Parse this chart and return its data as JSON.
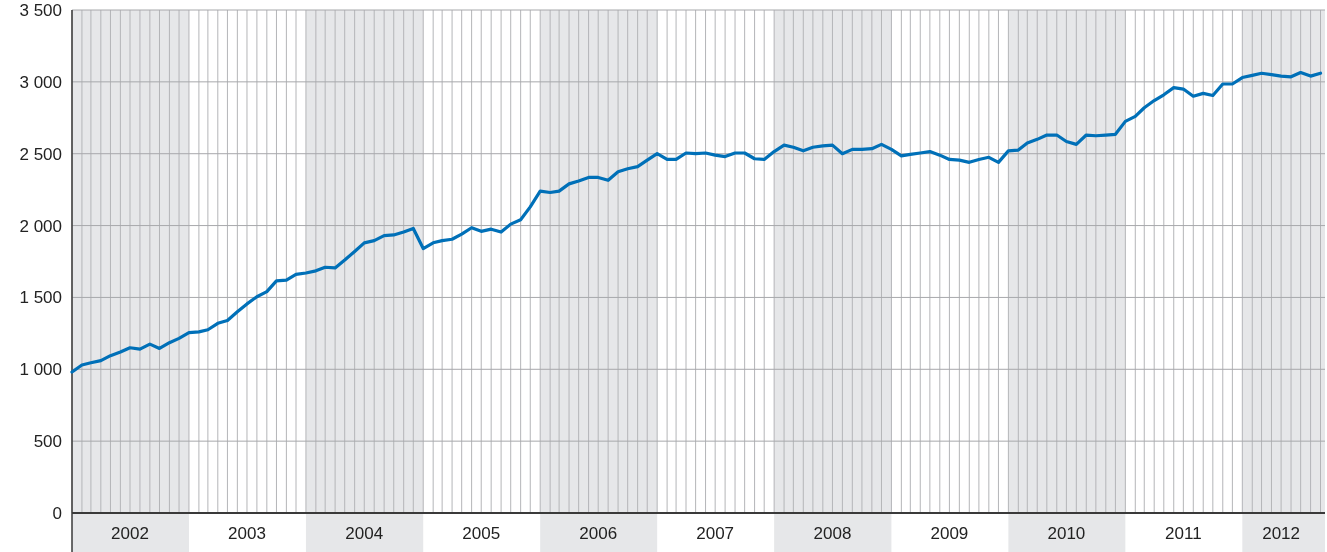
{
  "chart_data": {
    "type": "line",
    "x": [
      "2002-01",
      "2002-02",
      "2002-03",
      "2002-04",
      "2002-05",
      "2002-06",
      "2002-07",
      "2002-08",
      "2002-09",
      "2002-10",
      "2002-11",
      "2002-12",
      "2003-01",
      "2003-02",
      "2003-03",
      "2003-04",
      "2003-05",
      "2003-06",
      "2003-07",
      "2003-08",
      "2003-09",
      "2003-10",
      "2003-11",
      "2003-12",
      "2004-01",
      "2004-02",
      "2004-03",
      "2004-04",
      "2004-05",
      "2004-06",
      "2004-07",
      "2004-08",
      "2004-09",
      "2004-10",
      "2004-11",
      "2004-12",
      "2005-01",
      "2005-02",
      "2005-03",
      "2005-04",
      "2005-05",
      "2005-06",
      "2005-07",
      "2005-08",
      "2005-09",
      "2005-10",
      "2005-11",
      "2005-12",
      "2006-01",
      "2006-02",
      "2006-03",
      "2006-04",
      "2006-05",
      "2006-06",
      "2006-07",
      "2006-08",
      "2006-09",
      "2006-10",
      "2006-11",
      "2006-12",
      "2007-01",
      "2007-02",
      "2007-03",
      "2007-04",
      "2007-05",
      "2007-06",
      "2007-07",
      "2007-08",
      "2007-09",
      "2007-10",
      "2007-11",
      "2007-12",
      "2008-01",
      "2008-02",
      "2008-03",
      "2008-04",
      "2008-05",
      "2008-06",
      "2008-07",
      "2008-08",
      "2008-09",
      "2008-10",
      "2008-11",
      "2008-12",
      "2009-01",
      "2009-02",
      "2009-03",
      "2009-04",
      "2009-05",
      "2009-06",
      "2009-07",
      "2009-08",
      "2009-09",
      "2009-10",
      "2009-11",
      "2009-12",
      "2010-01",
      "2010-02",
      "2010-03",
      "2010-04",
      "2010-05",
      "2010-06",
      "2010-07",
      "2010-08",
      "2010-09",
      "2010-10",
      "2010-11",
      "2010-12",
      "2011-01",
      "2011-02",
      "2011-03",
      "2011-04",
      "2011-05",
      "2011-06",
      "2011-07",
      "2011-08",
      "2011-09",
      "2011-10",
      "2011-11",
      "2011-12",
      "2012-01",
      "2012-02",
      "2012-03",
      "2012-04",
      "2012-05",
      "2012-06",
      "2012-07",
      "2012-08",
      "2012-09"
    ],
    "series": [
      {
        "color": "#0070b8",
        "values": [
          981,
          1030,
          1045,
          1060,
          1095,
          1120,
          1150,
          1140,
          1175,
          1145,
          1185,
          1215,
          1255,
          1260,
          1275,
          1320,
          1340,
          1400,
          1455,
          1505,
          1540,
          1615,
          1620,
          1660,
          1670,
          1685,
          1710,
          1705,
          1760,
          1820,
          1880,
          1895,
          1930,
          1935,
          1955,
          1980,
          1840,
          1880,
          1895,
          1905,
          1940,
          1985,
          1960,
          1975,
          1955,
          2010,
          2040,
          2130,
          2240,
          2230,
          2240,
          2290,
          2310,
          2335,
          2335,
          2315,
          2375,
          2395,
          2410,
          2455,
          2500,
          2460,
          2460,
          2505,
          2500,
          2505,
          2490,
          2480,
          2505,
          2505,
          2465,
          2460,
          2515,
          2560,
          2545,
          2520,
          2545,
          2555,
          2560,
          2500,
          2530,
          2530,
          2535,
          2565,
          2530,
          2485,
          2495,
          2505,
          2515,
          2490,
          2460,
          2455,
          2440,
          2460,
          2475,
          2440,
          2520,
          2525,
          2575,
          2600,
          2630,
          2630,
          2585,
          2565,
          2630,
          2625,
          2630,
          2635,
          2725,
          2760,
          2820,
          2870,
          2910,
          2960,
          2950,
          2900,
          2920,
          2905,
          2985,
          2985,
          3030,
          3045,
          3060,
          3050,
          3040,
          3035,
          3065,
          3040,
          3060
        ]
      }
    ],
    "xlim": [
      "2002-01",
      "2012-09-15"
    ],
    "xticks": [
      {
        "value": "2002-01",
        "label": null
      },
      {
        "value": "2002-02",
        "label": null
      },
      {
        "value": "2002-03",
        "label": null
      },
      {
        "value": "2002-04",
        "label": null
      },
      {
        "value": "2002-05",
        "label": null
      },
      {
        "value": "2002-06",
        "label": null
      },
      {
        "value": "2002-07",
        "label": "2002"
      },
      {
        "value": "2002-08",
        "label": null
      },
      {
        "value": "2002-09",
        "label": null
      },
      {
        "value": "2002-10",
        "label": null
      },
      {
        "value": "2002-11",
        "label": null
      },
      {
        "value": "2002-12",
        "label": null
      },
      {
        "value": "2003-01",
        "label": null
      },
      {
        "value": "2003-02",
        "label": null
      },
      {
        "value": "2003-03",
        "label": null
      },
      {
        "value": "2003-04",
        "label": null
      },
      {
        "value": "2003-05",
        "label": null
      },
      {
        "value": "2003-06",
        "label": null
      },
      {
        "value": "2003-07",
        "label": "2003"
      },
      {
        "value": "2003-08",
        "label": null
      },
      {
        "value": "2003-09",
        "label": null
      },
      {
        "value": "2003-10",
        "label": null
      },
      {
        "value": "2003-11",
        "label": null
      },
      {
        "value": "2003-12",
        "label": null
      },
      {
        "value": "2004-01",
        "label": null
      },
      {
        "value": "2004-02",
        "label": null
      },
      {
        "value": "2004-03",
        "label": null
      },
      {
        "value": "2004-04",
        "label": null
      },
      {
        "value": "2004-05",
        "label": null
      },
      {
        "value": "2004-06",
        "label": null
      },
      {
        "value": "2004-07",
        "label": "2004"
      },
      {
        "value": "2004-08",
        "label": null
      },
      {
        "value": "2004-09",
        "label": null
      },
      {
        "value": "2004-10",
        "label": null
      },
      {
        "value": "2004-11",
        "label": null
      },
      {
        "value": "2004-12",
        "label": null
      },
      {
        "value": "2005-01",
        "label": null
      },
      {
        "value": "2005-02",
        "label": null
      },
      {
        "value": "2005-03",
        "label": null
      },
      {
        "value": "2005-04",
        "label": null
      },
      {
        "value": "2005-05",
        "label": null
      },
      {
        "value": "2005-06",
        "label": null
      },
      {
        "value": "2005-07",
        "label": "2005"
      },
      {
        "value": "2005-08",
        "label": null
      },
      {
        "value": "2005-09",
        "label": null
      },
      {
        "value": "2005-10",
        "label": null
      },
      {
        "value": "2005-11",
        "label": null
      },
      {
        "value": "2005-12",
        "label": null
      },
      {
        "value": "2006-01",
        "label": null
      },
      {
        "value": "2006-02",
        "label": null
      },
      {
        "value": "2006-03",
        "label": null
      },
      {
        "value": "2006-04",
        "label": null
      },
      {
        "value": "2006-05",
        "label": null
      },
      {
        "value": "2006-06",
        "label": null
      },
      {
        "value": "2006-07",
        "label": "2006"
      },
      {
        "value": "2006-08",
        "label": null
      },
      {
        "value": "2006-09",
        "label": null
      },
      {
        "value": "2006-10",
        "label": null
      },
      {
        "value": "2006-11",
        "label": null
      },
      {
        "value": "2006-12",
        "label": null
      },
      {
        "value": "2007-01",
        "label": null
      },
      {
        "value": "2007-02",
        "label": null
      },
      {
        "value": "2007-03",
        "label": null
      },
      {
        "value": "2007-04",
        "label": null
      },
      {
        "value": "2007-05",
        "label": null
      },
      {
        "value": "2007-06",
        "label": null
      },
      {
        "value": "2007-07",
        "label": "2007"
      },
      {
        "value": "2007-08",
        "label": null
      },
      {
        "value": "2007-09",
        "label": null
      },
      {
        "value": "2007-10",
        "label": null
      },
      {
        "value": "2007-11",
        "label": null
      },
      {
        "value": "2007-12",
        "label": null
      },
      {
        "value": "2008-01",
        "label": null
      },
      {
        "value": "2008-02",
        "label": null
      },
      {
        "value": "2008-03",
        "label": null
      },
      {
        "value": "2008-04",
        "label": null
      },
      {
        "value": "2008-05",
        "label": null
      },
      {
        "value": "2008-06",
        "label": null
      },
      {
        "value": "2008-07",
        "label": "2008"
      },
      {
        "value": "2008-08",
        "label": null
      },
      {
        "value": "2008-09",
        "label": null
      },
      {
        "value": "2008-10",
        "label": null
      },
      {
        "value": "2008-11",
        "label": null
      },
      {
        "value": "2008-12",
        "label": null
      },
      {
        "value": "2009-01",
        "label": null
      },
      {
        "value": "2009-02",
        "label": null
      },
      {
        "value": "2009-03",
        "label": null
      },
      {
        "value": "2009-04",
        "label": null
      },
      {
        "value": "2009-05",
        "label": null
      },
      {
        "value": "2009-06",
        "label": null
      },
      {
        "value": "2009-07",
        "label": "2009"
      },
      {
        "value": "2009-08",
        "label": null
      },
      {
        "value": "2009-09",
        "label": null
      },
      {
        "value": "2009-10",
        "label": null
      },
      {
        "value": "2009-11",
        "label": null
      },
      {
        "value": "2009-12",
        "label": null
      },
      {
        "value": "2010-01",
        "label": null
      },
      {
        "value": "2010-02",
        "label": null
      },
      {
        "value": "2010-03",
        "label": null
      },
      {
        "value": "2010-04",
        "label": null
      },
      {
        "value": "2010-05",
        "label": null
      },
      {
        "value": "2010-06",
        "label": null
      },
      {
        "value": "2010-07",
        "label": "2010"
      },
      {
        "value": "2010-08",
        "label": null
      },
      {
        "value": "2010-09",
        "label": null
      },
      {
        "value": "2010-10",
        "label": null
      },
      {
        "value": "2010-11",
        "label": null
      },
      {
        "value": "2010-12",
        "label": null
      },
      {
        "value": "2011-01",
        "label": null
      },
      {
        "value": "2011-02",
        "label": null
      },
      {
        "value": "2011-03",
        "label": null
      },
      {
        "value": "2011-04",
        "label": null
      },
      {
        "value": "2011-05",
        "label": null
      },
      {
        "value": "2011-06",
        "label": null
      },
      {
        "value": "2011-07",
        "label": "2011"
      },
      {
        "value": "2011-08",
        "label": null
      },
      {
        "value": "2011-09",
        "label": null
      },
      {
        "value": "2011-10",
        "label": null
      },
      {
        "value": "2011-11",
        "label": null
      },
      {
        "value": "2011-12",
        "label": null
      },
      {
        "value": "2012-01",
        "label": null
      },
      {
        "value": "2012-02",
        "label": null
      },
      {
        "value": "2012-03",
        "label": null
      },
      {
        "value": "2012-04",
        "label": null
      },
      {
        "value": "2012-05",
        "label": "2012"
      },
      {
        "value": "2012-06",
        "label": null
      },
      {
        "value": "2012-07",
        "label": null
      },
      {
        "value": "2012-08",
        "label": null
      },
      {
        "value": "2012-09",
        "label": null
      }
    ],
    "ylim": [
      0,
      3500
    ],
    "yticks": [
      0,
      500,
      {
        "value": 1000,
        "label": "1 000"
      },
      {
        "value": 1500,
        "label": "1 500"
      },
      {
        "value": 2000,
        "label": "2 000"
      },
      {
        "value": 2500,
        "label": "2 500"
      },
      {
        "value": 3000,
        "label": "3 000"
      },
      {
        "value": 3500,
        "label": "3 500"
      }
    ],
    "grid": true,
    "bands": [
      {
        "axis": "x",
        "from": "2002-01",
        "to": "2003-01",
        "color": "#e6e7e9"
      },
      {
        "axis": "x",
        "from": "2004-01",
        "to": "2005-01",
        "color": "#e6e7e9"
      },
      {
        "axis": "x",
        "from": "2006-01",
        "to": "2007-01",
        "color": "#e6e7e9"
      },
      {
        "axis": "x",
        "from": "2008-01",
        "to": "2009-01",
        "color": "#e6e7e9"
      },
      {
        "axis": "x",
        "from": "2010-01",
        "to": "2011-01",
        "color": "#e6e7e9"
      },
      {
        "axis": "x",
        "from": "2012-01",
        "to": "2012-09-15",
        "color": "#e6e7e9"
      }
    ]
  }
}
